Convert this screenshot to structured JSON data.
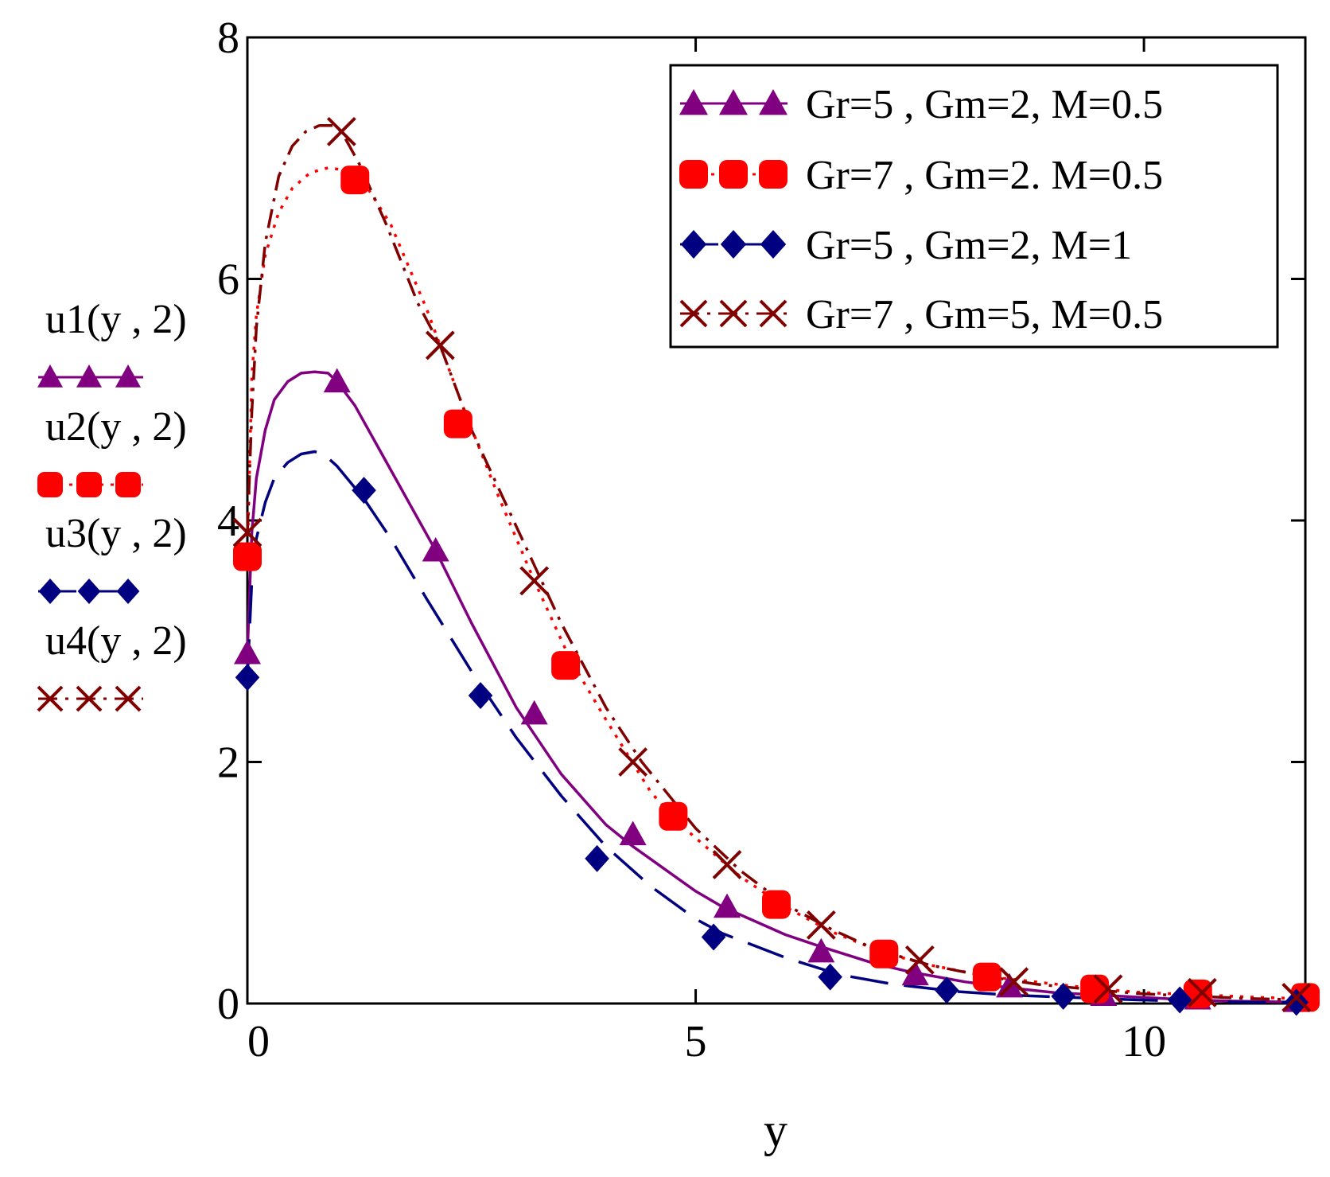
{
  "chart_data": {
    "type": "line",
    "xlabel": "y",
    "xlim": [
      0,
      11.8
    ],
    "ylim": [
      0,
      8
    ],
    "xticks": [
      0,
      5,
      10
    ],
    "yticks": [
      0,
      2,
      4,
      6,
      8
    ],
    "grid": false,
    "legend_position": "top-right",
    "series": [
      {
        "name": "Gr=5 , Gm=2, M=0.5",
        "ylabel": "u1(y , 2)",
        "color": "#800080",
        "marker": "triangle",
        "line_style": "solid",
        "x": [
          0,
          0.05,
          0.1,
          0.2,
          0.3,
          0.45,
          0.6,
          0.75,
          0.9,
          1.0,
          1.2,
          1.5,
          1.8,
          2.1,
          2.5,
          3.0,
          3.5,
          4.0,
          4.3,
          5.0,
          5.3,
          6.0,
          6.4,
          7.0,
          7.4,
          8.0,
          8.5,
          9.0,
          9.5,
          10.0,
          10.5,
          11.0,
          11.8
        ],
        "y": [
          2.9,
          3.9,
          4.35,
          4.75,
          5.0,
          5.15,
          5.22,
          5.23,
          5.22,
          5.15,
          4.95,
          4.55,
          4.15,
          3.75,
          3.15,
          2.45,
          1.9,
          1.48,
          1.3,
          0.93,
          0.8,
          0.57,
          0.47,
          0.33,
          0.26,
          0.18,
          0.13,
          0.09,
          0.07,
          0.05,
          0.03,
          0.02,
          0.01
        ],
        "marker_x": [
          0,
          1.0,
          2.1,
          3.2,
          4.3,
          5.35,
          6.4,
          7.45,
          8.5,
          9.55,
          10.6,
          11.7
        ],
        "marker_y": [
          2.9,
          5.15,
          3.75,
          2.4,
          1.4,
          0.8,
          0.43,
          0.24,
          0.14,
          0.07,
          0.04,
          0.02
        ]
      },
      {
        "name": "Gr=7 , Gm=2. M=0.5",
        "ylabel": "u2(y , 2)",
        "color": "#ff0000",
        "marker": "rounded-square",
        "line_style": "dotted",
        "x": [
          0,
          0.05,
          0.1,
          0.2,
          0.35,
          0.5,
          0.7,
          0.9,
          1.1,
          1.3,
          1.6,
          2.0,
          2.4,
          2.8,
          3.2,
          3.6,
          4.0,
          4.5,
          4.8,
          5.5,
          6.0,
          6.5,
          7.1,
          7.6,
          8.3,
          8.9,
          9.5,
          10.0,
          10.7,
          11.3,
          11.8
        ],
        "y": [
          3.7,
          5.2,
          5.7,
          6.2,
          6.55,
          6.75,
          6.88,
          6.92,
          6.9,
          6.8,
          6.45,
          5.75,
          4.95,
          4.2,
          3.5,
          2.85,
          2.35,
          1.75,
          1.5,
          1.05,
          0.8,
          0.6,
          0.42,
          0.32,
          0.22,
          0.17,
          0.12,
          0.09,
          0.07,
          0.05,
          0.04
        ],
        "marker_x": [
          0,
          1.2,
          2.35,
          3.55,
          4.75,
          5.9,
          7.1,
          8.25,
          9.45,
          10.6,
          11.8
        ],
        "marker_y": [
          3.7,
          6.82,
          4.8,
          2.8,
          1.55,
          0.82,
          0.41,
          0.22,
          0.12,
          0.08,
          0.05
        ]
      },
      {
        "name": "Gr=5 , Gm=2, M=1",
        "ylabel": "u3(y , 2)",
        "color": "#000080",
        "marker": "diamond",
        "line_style": "long-dash",
        "x": [
          0,
          0.05,
          0.1,
          0.2,
          0.3,
          0.45,
          0.6,
          0.75,
          0.85,
          1.0,
          1.3,
          1.6,
          2.0,
          2.5,
          3.0,
          3.5,
          4.0,
          4.5,
          5.0,
          5.3,
          6.0,
          6.6,
          7.2,
          7.9,
          8.5,
          9.2,
          9.9,
          10.5,
          11.2,
          11.8
        ],
        "y": [
          2.7,
          3.5,
          3.85,
          4.15,
          4.35,
          4.48,
          4.55,
          4.57,
          4.55,
          4.45,
          4.18,
          3.85,
          3.35,
          2.75,
          2.2,
          1.72,
          1.3,
          0.97,
          0.7,
          0.58,
          0.38,
          0.24,
          0.16,
          0.1,
          0.07,
          0.05,
          0.03,
          0.02,
          0.01,
          0.01
        ],
        "marker_x": [
          0,
          1.3,
          2.6,
          3.9,
          5.2,
          6.5,
          7.8,
          9.1,
          10.4,
          11.7
        ],
        "marker_y": [
          2.7,
          4.25,
          2.55,
          1.2,
          0.55,
          0.22,
          0.11,
          0.06,
          0.03,
          0.01
        ]
      },
      {
        "name": "Gr=7 , Gm=5, M=0.5",
        "ylabel": "u4(y , 2)",
        "color": "#800000",
        "marker": "x",
        "line_style": "dash-dot",
        "x": [
          0,
          0.05,
          0.1,
          0.2,
          0.35,
          0.5,
          0.65,
          0.8,
          0.95,
          1.05,
          1.25,
          1.55,
          1.9,
          2.15,
          2.5,
          3.0,
          3.5,
          4.0,
          4.4,
          5.0,
          5.5,
          6.0,
          6.5,
          7.0,
          7.6,
          8.2,
          8.8,
          9.5,
          10.0,
          10.6,
          11.2,
          11.8
        ],
        "y": [
          3.9,
          4.9,
          5.6,
          6.3,
          6.85,
          7.1,
          7.22,
          7.27,
          7.27,
          7.22,
          6.95,
          6.45,
          5.8,
          5.45,
          4.75,
          3.95,
          3.15,
          2.45,
          2.0,
          1.45,
          1.1,
          0.82,
          0.62,
          0.45,
          0.32,
          0.23,
          0.16,
          0.11,
          0.08,
          0.06,
          0.04,
          0.03
        ],
        "marker_x": [
          0,
          1.05,
          2.15,
          3.2,
          4.3,
          5.35,
          6.4,
          7.5,
          8.55,
          9.6,
          10.65,
          11.7
        ],
        "marker_y": [
          3.9,
          7.22,
          5.45,
          3.5,
          2.0,
          1.15,
          0.65,
          0.36,
          0.18,
          0.12,
          0.09,
          0.05
        ]
      }
    ]
  }
}
